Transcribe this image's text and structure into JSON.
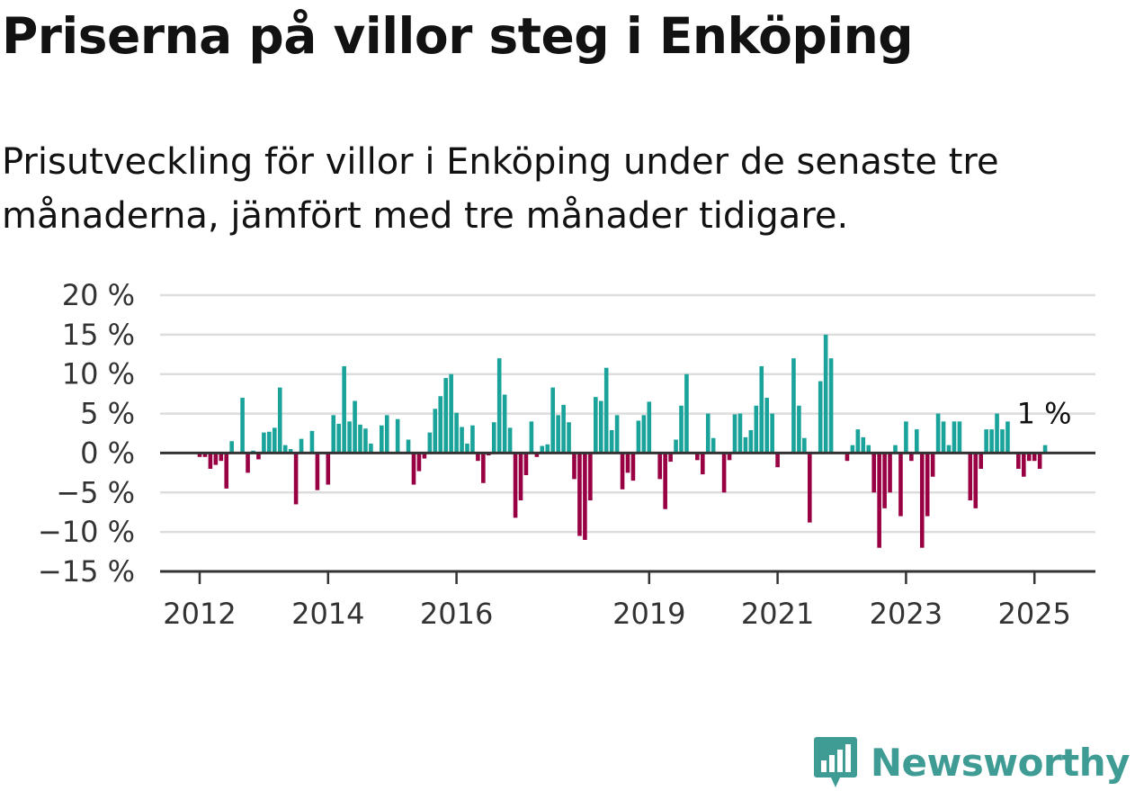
{
  "header": {
    "title": "Priserna på villor steg i Enköping",
    "subtitle": "Prisutveckling för villor i Enköping under de senaste tre månaderna, jämfört med tre månader tidigare."
  },
  "brand": {
    "name": "Newsworthy",
    "icon": "bar-chart-bubble-icon"
  },
  "colors": {
    "positive": "#19a39a",
    "negative": "#990044",
    "grid": "#dddddd",
    "axis": "#333333",
    "brand": "#3f9c95"
  },
  "chart_data": {
    "type": "bar",
    "title": "Priserna på villor steg i Enköping",
    "subtitle": "Prisutveckling för villor i Enköping under de senaste tre månaderna, jämfört med tre månader tidigare.",
    "xlabel": "",
    "ylabel": "",
    "ylim": [
      -15,
      20
    ],
    "y_ticks": [
      20,
      15,
      10,
      5,
      0,
      -5,
      -10,
      -15
    ],
    "y_tick_labels": [
      "20 %",
      "15 %",
      "10 %",
      "5 %",
      "0 %",
      "−5 %",
      "−10 %",
      "−15 %"
    ],
    "x_ticks": [
      {
        "year": 2012,
        "label": "2012"
      },
      {
        "year": 2014,
        "label": "2014"
      },
      {
        "year": 2016,
        "label": "2016"
      },
      {
        "year": 2019,
        "label": "2019"
      },
      {
        "year": 2021,
        "label": "2021"
      },
      {
        "year": 2023,
        "label": "2023"
      },
      {
        "year": 2025,
        "label": "2025"
      }
    ],
    "grid": true,
    "start": "2012-01",
    "frequency": "monthly",
    "unit": "%",
    "values": [
      -0.5,
      -0.5,
      -2,
      -1.5,
      -1,
      -4.5,
      1.5,
      0,
      7,
      -2.5,
      0.3,
      -0.8,
      2.6,
      2.7,
      3.2,
      8.3,
      1,
      0.5,
      -6.5,
      1.8,
      0,
      2.8,
      -4.7,
      0,
      -4,
      4.8,
      3.7,
      11,
      4,
      6.6,
      3.6,
      3.1,
      1.2,
      0,
      3.5,
      4.8,
      0,
      4.3,
      0,
      1.7,
      -4,
      -2.3,
      -0.7,
      2.6,
      5.6,
      7.2,
      9.5,
      10,
      5.1,
      3.3,
      1.2,
      3.5,
      -1,
      -3.8,
      -0.3,
      3.9,
      12,
      7.4,
      3.2,
      -8.2,
      -6,
      -2.8,
      4,
      -0.5,
      0.9,
      1.1,
      8.3,
      4.8,
      6.1,
      3.9,
      -3.3,
      -10.5,
      -11,
      -6,
      7.1,
      6.6,
      10.8,
      2.9,
      4.8,
      -4.6,
      -2.5,
      -3.5,
      4.1,
      4.8,
      6.5,
      0,
      -3.3,
      -7.1,
      -1.1,
      1.7,
      6,
      10,
      0,
      -0.9,
      -2.7,
      5,
      1.9,
      0,
      -5,
      -0.9,
      4.9,
      5,
      2,
      2.9,
      6,
      11,
      7,
      5,
      -1.8,
      0,
      0,
      12,
      6,
      1.9,
      -8.8,
      0,
      9.1,
      15,
      12,
      0,
      0,
      -1,
      1,
      3,
      2,
      1,
      -5,
      -12,
      -7,
      -5,
      1,
      -8,
      4,
      -1,
      3,
      -12,
      -8,
      -3,
      5,
      4,
      1,
      4,
      4,
      0,
      -6,
      -7,
      -2,
      3,
      3,
      5,
      3,
      4,
      0,
      -2,
      -3,
      -1,
      -1,
      -2,
      1
    ],
    "last_value_label": "1 %"
  }
}
